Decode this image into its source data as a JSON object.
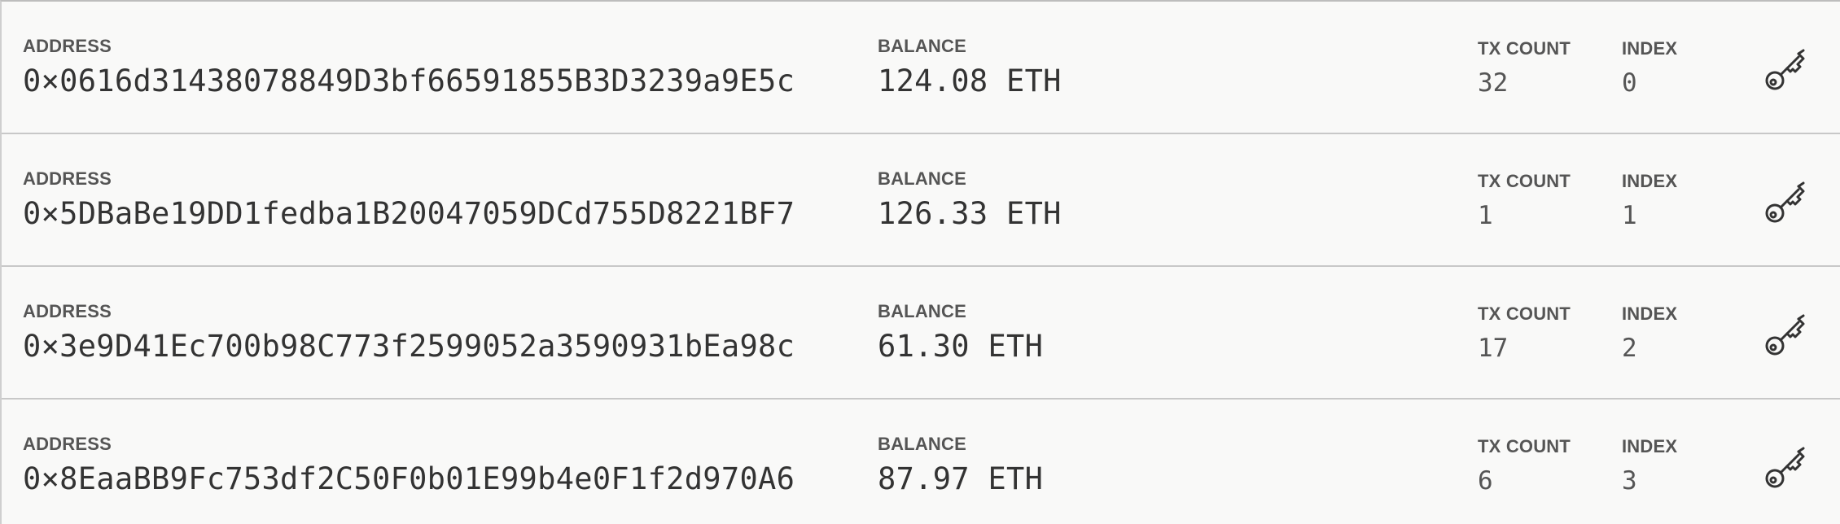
{
  "labels": {
    "address": "ADDRESS",
    "balance": "BALANCE",
    "tx_count": "TX COUNT",
    "index": "INDEX"
  },
  "key_icon": "key-icon",
  "accounts": [
    {
      "address": "0×0616d31438078849D3bf66591855B3D3239a9E5c",
      "balance": "124.08 ETH",
      "tx_count": "32",
      "index": "0"
    },
    {
      "address": "0×5DBaBe19DD1fedba1B20047059DCd755D8221BF7",
      "balance": "126.33 ETH",
      "tx_count": "1",
      "index": "1"
    },
    {
      "address": "0×3e9D41Ec700b98C773f2599052a3590931bEa98c",
      "balance": "61.30 ETH",
      "tx_count": "17",
      "index": "2"
    },
    {
      "address": "0×8EaaBB9Fc753df2C50F0b01E99b4e0F1f2d970A6",
      "balance": "87.97 ETH",
      "tx_count": "6",
      "index": "3"
    }
  ]
}
